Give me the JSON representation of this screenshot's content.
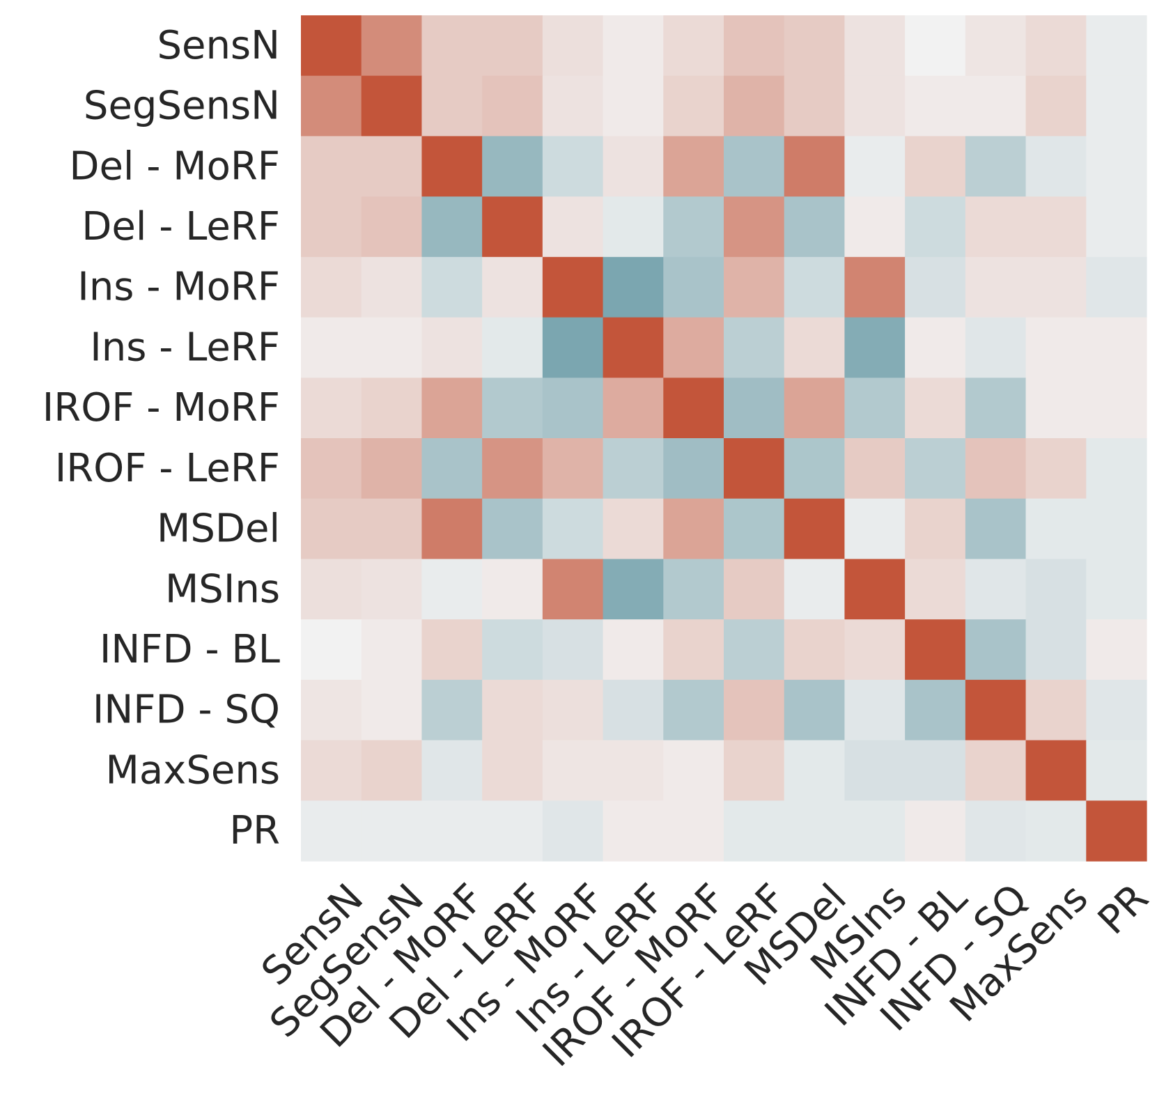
{
  "chart_data": {
    "type": "heatmap",
    "title": "",
    "xlabel": "",
    "ylabel": "",
    "labels": [
      "SensN",
      "SegSensN",
      "Del - MoRF",
      "Del - LeRF",
      "Ins - MoRF",
      "Ins - LeRF",
      "IROF - MoRF",
      "IROF - LeRF",
      "MSDel",
      "MSIns",
      "INFD - BL",
      "INFD - SQ",
      "MaxSens",
      "PR"
    ],
    "value_range": [
      -1,
      1
    ],
    "colormap": {
      "negative": "#3b7d8c",
      "neutral": "#f2f2f2",
      "positive": "#c3553a"
    },
    "values": [
      [
        1.0,
        0.65,
        0.25,
        0.25,
        0.12,
        0.05,
        0.15,
        0.3,
        0.25,
        0.1,
        0.0,
        0.08,
        0.15,
        -0.05
      ],
      [
        0.65,
        1.0,
        0.25,
        0.3,
        0.1,
        0.05,
        0.2,
        0.4,
        0.25,
        0.1,
        0.05,
        0.05,
        0.2,
        -0.05
      ],
      [
        0.25,
        0.25,
        1.0,
        -0.5,
        -0.2,
        0.1,
        0.5,
        -0.4,
        0.75,
        -0.05,
        0.2,
        -0.3,
        -0.1,
        -0.05
      ],
      [
        0.25,
        0.3,
        -0.5,
        1.0,
        0.1,
        -0.08,
        -0.35,
        0.6,
        -0.4,
        0.05,
        -0.2,
        0.15,
        0.15,
        -0.05
      ],
      [
        0.15,
        0.1,
        -0.2,
        0.1,
        1.0,
        -0.65,
        -0.4,
        0.4,
        -0.2,
        0.7,
        -0.15,
        0.1,
        0.1,
        -0.1
      ],
      [
        0.05,
        0.05,
        0.1,
        -0.08,
        -0.65,
        1.0,
        0.45,
        -0.3,
        0.15,
        -0.6,
        0.05,
        -0.1,
        0.05,
        0.05
      ],
      [
        0.15,
        0.2,
        0.5,
        -0.35,
        -0.4,
        0.45,
        1.0,
        -0.45,
        0.5,
        -0.35,
        0.15,
        -0.35,
        0.05,
        0.05
      ],
      [
        0.3,
        0.4,
        -0.4,
        0.6,
        0.4,
        -0.3,
        -0.45,
        1.0,
        -0.38,
        0.25,
        -0.3,
        0.3,
        0.2,
        -0.08
      ],
      [
        0.25,
        0.25,
        0.75,
        -0.4,
        -0.2,
        0.15,
        0.5,
        -0.38,
        1.0,
        -0.05,
        0.2,
        -0.4,
        -0.08,
        -0.08
      ],
      [
        0.12,
        0.1,
        -0.05,
        0.05,
        0.7,
        -0.6,
        -0.35,
        0.25,
        -0.05,
        1.0,
        0.15,
        -0.1,
        -0.15,
        -0.08
      ],
      [
        0.0,
        0.05,
        0.2,
        -0.2,
        -0.15,
        0.05,
        0.2,
        -0.3,
        0.2,
        0.15,
        1.0,
        -0.4,
        -0.15,
        0.05
      ],
      [
        0.08,
        0.05,
        -0.3,
        0.15,
        0.12,
        -0.15,
        -0.35,
        0.3,
        -0.4,
        -0.1,
        -0.4,
        1.0,
        0.2,
        -0.1
      ],
      [
        0.15,
        0.2,
        -0.1,
        0.15,
        0.08,
        0.08,
        0.05,
        0.2,
        -0.08,
        -0.15,
        -0.15,
        0.2,
        1.0,
        -0.08
      ],
      [
        -0.05,
        -0.05,
        -0.05,
        -0.05,
        -0.1,
        0.05,
        0.05,
        -0.08,
        -0.08,
        -0.08,
        0.05,
        -0.1,
        -0.08,
        1.0
      ]
    ]
  }
}
